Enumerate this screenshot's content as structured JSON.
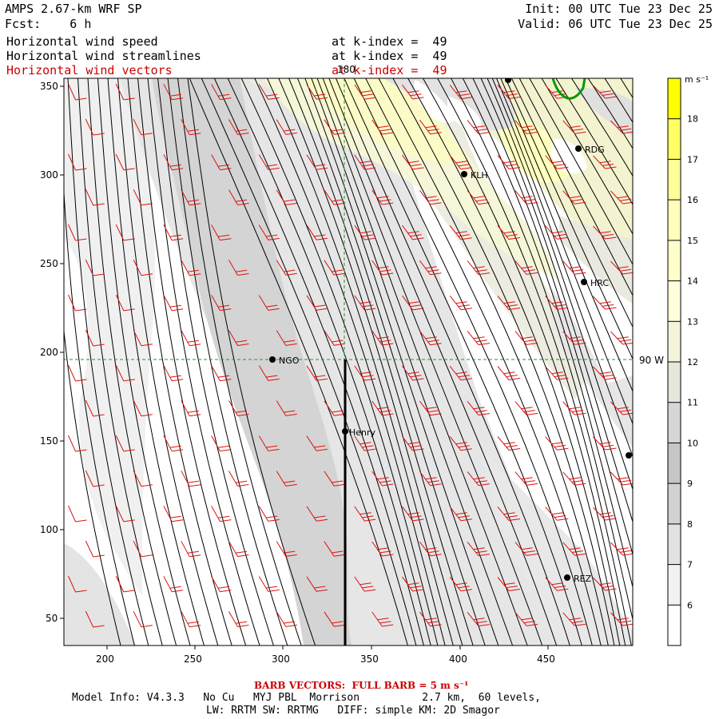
{
  "header": {
    "model_title": "AMPS 2.67-km WRF SP",
    "init": "Init: 00 UTC Tue 23 Dec 25",
    "fcst": "Fcst:    6 h",
    "valid": "Valid: 06 UTC Tue 23 Dec 25",
    "fields": [
      {
        "label": "Horizontal wind speed",
        "level": "at k-index =  49",
        "color": "#000000"
      },
      {
        "label": "Horizontal wind streamlines",
        "level": "at k-index =  49",
        "color": "#000000"
      },
      {
        "label": "Horizontal wind vectors",
        "level": "at k-index =  49",
        "color": "#cc0000"
      }
    ]
  },
  "map": {
    "x_ticks": [
      "200",
      "250",
      "300",
      "350",
      "400",
      "450"
    ],
    "y_ticks": [
      "350",
      "300",
      "250",
      "200",
      "150",
      "100",
      "50"
    ],
    "reference_lines": {
      "meridian_label": "180",
      "parallel_label": "90 W"
    },
    "stations": [
      {
        "name": "NGO"
      },
      {
        "name": "Henry"
      },
      {
        "name": "KLH"
      },
      {
        "name": "RDG"
      },
      {
        "name": "HRC"
      },
      {
        "name": "REZ"
      },
      {
        "name": ""
      },
      {
        "name": ""
      }
    ],
    "colors": {
      "streamline": "#000000",
      "barb": "#dd1111",
      "grid": "#2f8f2f",
      "coast": "#009900"
    }
  },
  "colorbar": {
    "units": "m s⁻¹",
    "levels": [
      "18",
      "17",
      "16",
      "15",
      "14",
      "13",
      "12",
      "11",
      "10",
      "9",
      "8",
      "7",
      "6"
    ],
    "colors": [
      "#ffff00",
      "#ffff66",
      "#ffff99",
      "#ffffbb",
      "#ffffcc",
      "#ffffdd",
      "#f4f4dc",
      "#e6e6da",
      "#d6d6d6",
      "#c6c6c6",
      "#d2d2d2",
      "#e2e2e2",
      "#f2f2f2",
      "#ffffff"
    ]
  },
  "footer": {
    "barb_legend": "BARB VECTORS:  FULL BARB = 5 m s⁻¹",
    "model_info_1": "Model Info: V4.3.3   No Cu   MYJ PBL  Morrison          2.7 km,  60 levels,",
    "model_info_2": "LW: RRTM SW: RRTMG   DIFF: simple KM: 2D Smagor"
  }
}
